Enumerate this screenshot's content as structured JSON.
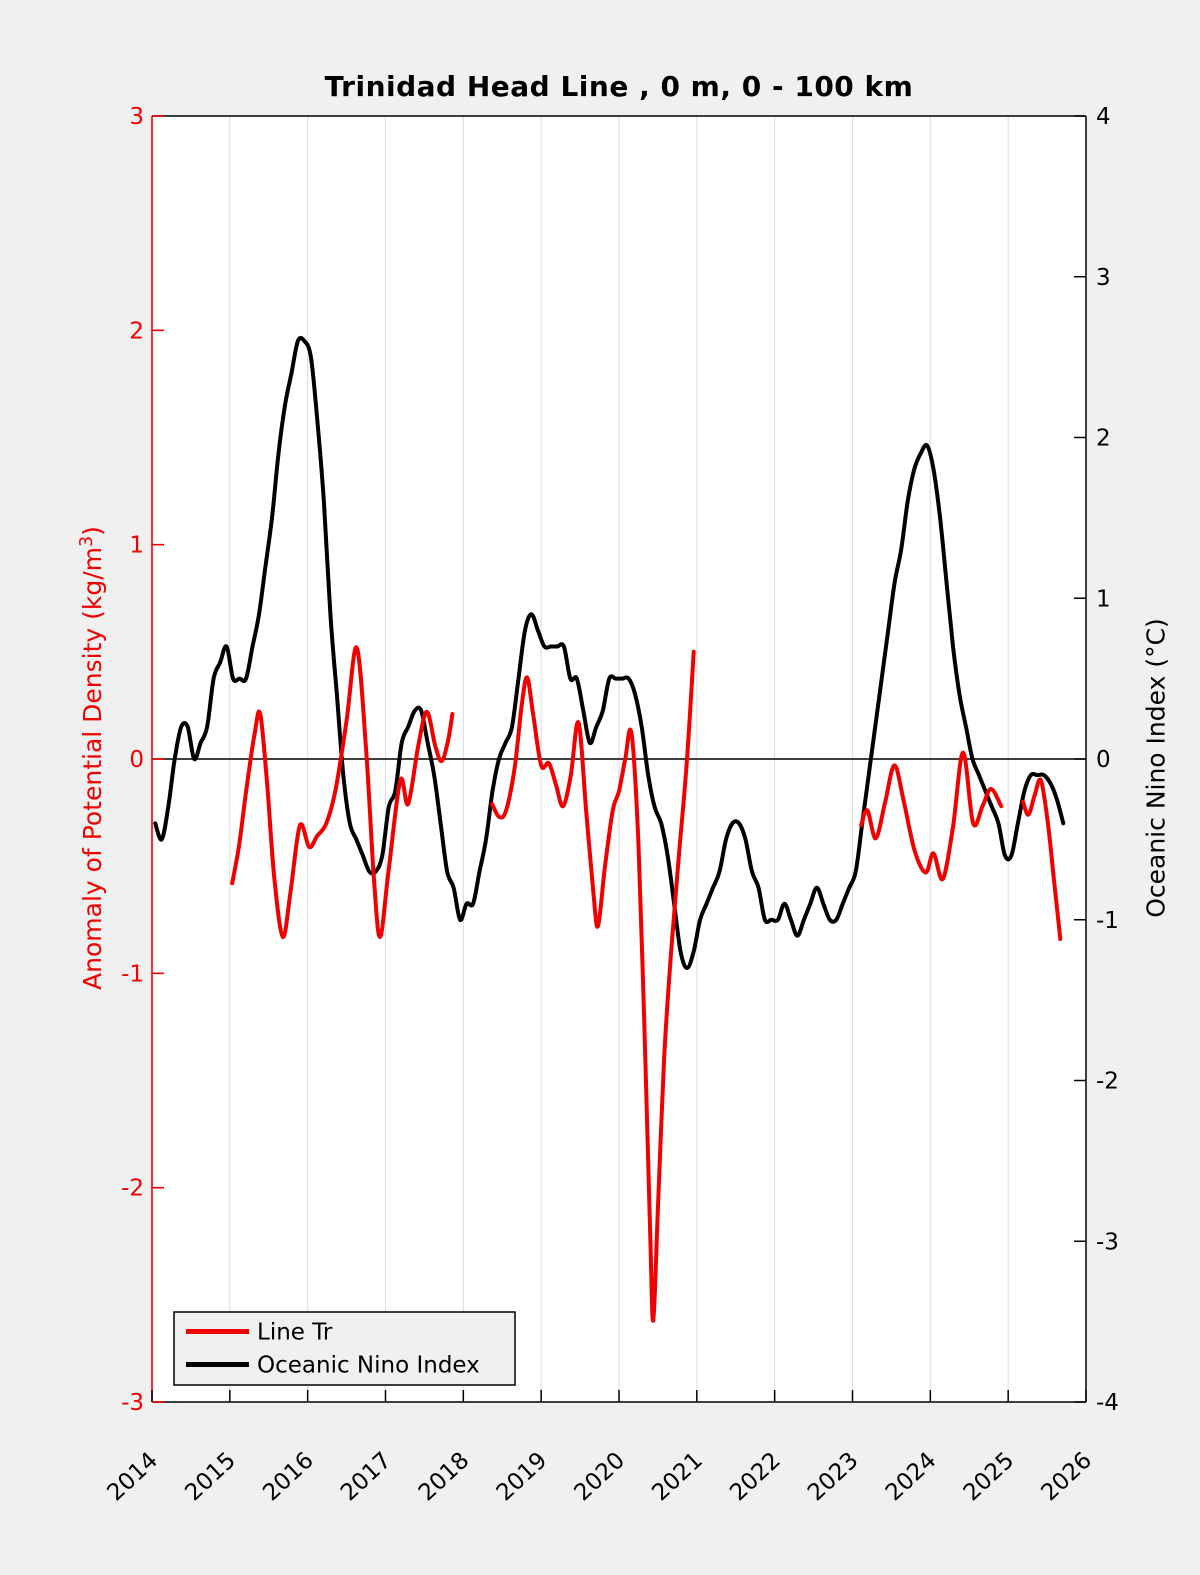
{
  "chart_data": {
    "type": "line",
    "title": "Trinidad Head Line , 0 m, 0 - 100 km",
    "colors": {
      "figure_background": "#f0f0f0",
      "plot_background": "#ffffff",
      "grid": "#e0e0e0",
      "axis": "#000000",
      "left_axis_accent": "#f20000"
    },
    "x_axis": {
      "min": 2014,
      "max": 2026,
      "ticks": [
        2014,
        2015,
        2016,
        2017,
        2018,
        2019,
        2020,
        2021,
        2022,
        2023,
        2024,
        2025,
        2026
      ],
      "tick_labels": [
        "2014",
        "2015",
        "2016",
        "2017",
        "2018",
        "2019",
        "2020",
        "2021",
        "2022",
        "2023",
        "2024",
        "2025",
        "2026"
      ],
      "grid": true
    },
    "y_axis_left": {
      "label_pre": "Anomaly of Potential Density (kg/m",
      "label_sup": "3",
      "label_post": ")",
      "color": "#f20000",
      "min": -3,
      "max": 3,
      "ticks": [
        3,
        2,
        1,
        0,
        -1,
        -2,
        -3
      ],
      "tick_labels": [
        "3",
        "2",
        "1",
        "0",
        "-1",
        "-2",
        "-3"
      ]
    },
    "y_axis_right": {
      "label": "Oceanic Nino Index (°C)",
      "color": "#000000",
      "min": -4,
      "max": 4,
      "ticks": [
        4,
        3,
        2,
        1,
        0,
        -1,
        -2,
        -3,
        -4
      ],
      "tick_labels": [
        "4",
        "3",
        "2",
        "1",
        "0",
        "-1",
        "-2",
        "-3",
        "-4"
      ]
    },
    "zero_line": {
      "value": 0,
      "color": "#000000"
    },
    "legend": {
      "position": "bottom-left",
      "items": [
        {
          "label": "Line Tr",
          "color": "#f20000"
        },
        {
          "label": "Oceanic Nino Index",
          "color": "#000000"
        }
      ]
    },
    "series": [
      {
        "name": "Line Tr",
        "axis": "left",
        "color": "#f20000",
        "line_width": 4,
        "segments": [
          [
            [
              2015.03,
              -0.58
            ],
            [
              2015.12,
              -0.4
            ],
            [
              2015.22,
              -0.12
            ],
            [
              2015.32,
              0.12
            ],
            [
              2015.39,
              0.21
            ],
            [
              2015.48,
              -0.12
            ],
            [
              2015.57,
              -0.55
            ],
            [
              2015.68,
              -0.83
            ],
            [
              2015.78,
              -0.62
            ],
            [
              2015.9,
              -0.31
            ],
            [
              2016.02,
              -0.41
            ],
            [
              2016.12,
              -0.36
            ],
            [
              2016.24,
              -0.3
            ],
            [
              2016.36,
              -0.14
            ],
            [
              2016.5,
              0.18
            ],
            [
              2016.63,
              0.52
            ],
            [
              2016.75,
              0.05
            ],
            [
              2016.85,
              -0.55
            ],
            [
              2016.93,
              -0.83
            ],
            [
              2017.04,
              -0.52
            ],
            [
              2017.19,
              -0.1
            ],
            [
              2017.29,
              -0.21
            ],
            [
              2017.42,
              0.06
            ],
            [
              2017.53,
              0.22
            ],
            [
              2017.64,
              0.06
            ],
            [
              2017.72,
              -0.01
            ],
            [
              2017.8,
              0.08
            ],
            [
              2017.86,
              0.21
            ]
          ],
          [
            [
              2018.37,
              -0.21
            ],
            [
              2018.46,
              -0.27
            ],
            [
              2018.55,
              -0.24
            ],
            [
              2018.66,
              -0.04
            ],
            [
              2018.75,
              0.25
            ],
            [
              2018.82,
              0.38
            ],
            [
              2018.9,
              0.2
            ],
            [
              2019.0,
              -0.03
            ],
            [
              2019.1,
              -0.02
            ],
            [
              2019.19,
              -0.12
            ],
            [
              2019.28,
              -0.22
            ],
            [
              2019.38,
              -0.08
            ],
            [
              2019.48,
              0.17
            ],
            [
              2019.58,
              -0.25
            ],
            [
              2019.67,
              -0.62
            ],
            [
              2019.73,
              -0.78
            ],
            [
              2019.82,
              -0.5
            ],
            [
              2019.92,
              -0.24
            ],
            [
              2020.0,
              -0.15
            ],
            [
              2020.08,
              0.0
            ],
            [
              2020.16,
              0.12
            ],
            [
              2020.25,
              -0.4
            ],
            [
              2020.33,
              -1.3
            ],
            [
              2020.4,
              -2.2
            ],
            [
              2020.44,
              -2.62
            ],
            [
              2020.5,
              -2.1
            ],
            [
              2020.58,
              -1.4
            ],
            [
              2020.67,
              -0.9
            ],
            [
              2020.77,
              -0.45
            ],
            [
              2020.87,
              -0.02
            ],
            [
              2020.96,
              0.5
            ]
          ],
          [
            [
              2023.11,
              -0.31
            ],
            [
              2023.19,
              -0.24
            ],
            [
              2023.3,
              -0.37
            ],
            [
              2023.42,
              -0.2
            ],
            [
              2023.54,
              -0.03
            ],
            [
              2023.66,
              -0.2
            ],
            [
              2023.8,
              -0.43
            ],
            [
              2023.94,
              -0.53
            ],
            [
              2024.04,
              -0.44
            ],
            [
              2024.16,
              -0.56
            ],
            [
              2024.29,
              -0.32
            ],
            [
              2024.42,
              0.03
            ],
            [
              2024.55,
              -0.3
            ],
            [
              2024.67,
              -0.22
            ],
            [
              2024.78,
              -0.14
            ],
            [
              2024.91,
              -0.22
            ]
          ],
          [
            [
              2025.19,
              -0.2
            ],
            [
              2025.26,
              -0.26
            ],
            [
              2025.34,
              -0.17
            ],
            [
              2025.42,
              -0.1
            ],
            [
              2025.51,
              -0.3
            ],
            [
              2025.59,
              -0.57
            ],
            [
              2025.67,
              -0.84
            ]
          ]
        ]
      },
      {
        "name": "Oceanic Nino Index",
        "axis": "right",
        "color": "#000000",
        "line_width": 4,
        "monthly_start_year": 2014,
        "monthly_values": [
          -0.4,
          -0.5,
          -0.3,
          0.0,
          0.2,
          0.2,
          0.0,
          0.1,
          0.2,
          0.5,
          0.6,
          0.7,
          0.5,
          0.5,
          0.5,
          0.7,
          0.9,
          1.2,
          1.5,
          1.9,
          2.2,
          2.4,
          2.6,
          2.6,
          2.5,
          2.1,
          1.6,
          0.9,
          0.4,
          -0.1,
          -0.4,
          -0.5,
          -0.6,
          -0.7,
          -0.7,
          -0.6,
          -0.3,
          -0.2,
          0.1,
          0.2,
          0.3,
          0.3,
          0.1,
          -0.1,
          -0.4,
          -0.7,
          -0.8,
          -1.0,
          -0.9,
          -0.9,
          -0.7,
          -0.5,
          -0.2,
          0.0,
          0.1,
          0.2,
          0.5,
          0.8,
          0.9,
          0.8,
          0.7,
          0.7,
          0.7,
          0.7,
          0.5,
          0.5,
          0.3,
          0.1,
          0.2,
          0.3,
          0.5,
          0.5,
          0.5,
          0.5,
          0.4,
          0.2,
          -0.1,
          -0.3,
          -0.4,
          -0.6,
          -0.9,
          -1.2,
          -1.3,
          -1.2,
          -1.0,
          -0.9,
          -0.8,
          -0.7,
          -0.5,
          -0.4,
          -0.4,
          -0.5,
          -0.7,
          -0.8,
          -1.0,
          -1.0,
          -1.0,
          -0.9,
          -1.0,
          -1.1,
          -1.0,
          -0.9,
          -0.8,
          -0.9,
          -1.0,
          -1.0,
          -0.9,
          -0.8,
          -0.7,
          -0.4,
          -0.1,
          0.2,
          0.5,
          0.8,
          1.1,
          1.3,
          1.6,
          1.8,
          1.9,
          1.95,
          1.8,
          1.5,
          1.1,
          0.7,
          0.4,
          0.2,
          0.0,
          -0.1,
          -0.2,
          -0.3,
          -0.4,
          -0.6,
          -0.6,
          -0.4,
          -0.2,
          -0.1,
          -0.1,
          -0.1,
          -0.15,
          -0.25,
          -0.4
        ]
      }
    ]
  }
}
